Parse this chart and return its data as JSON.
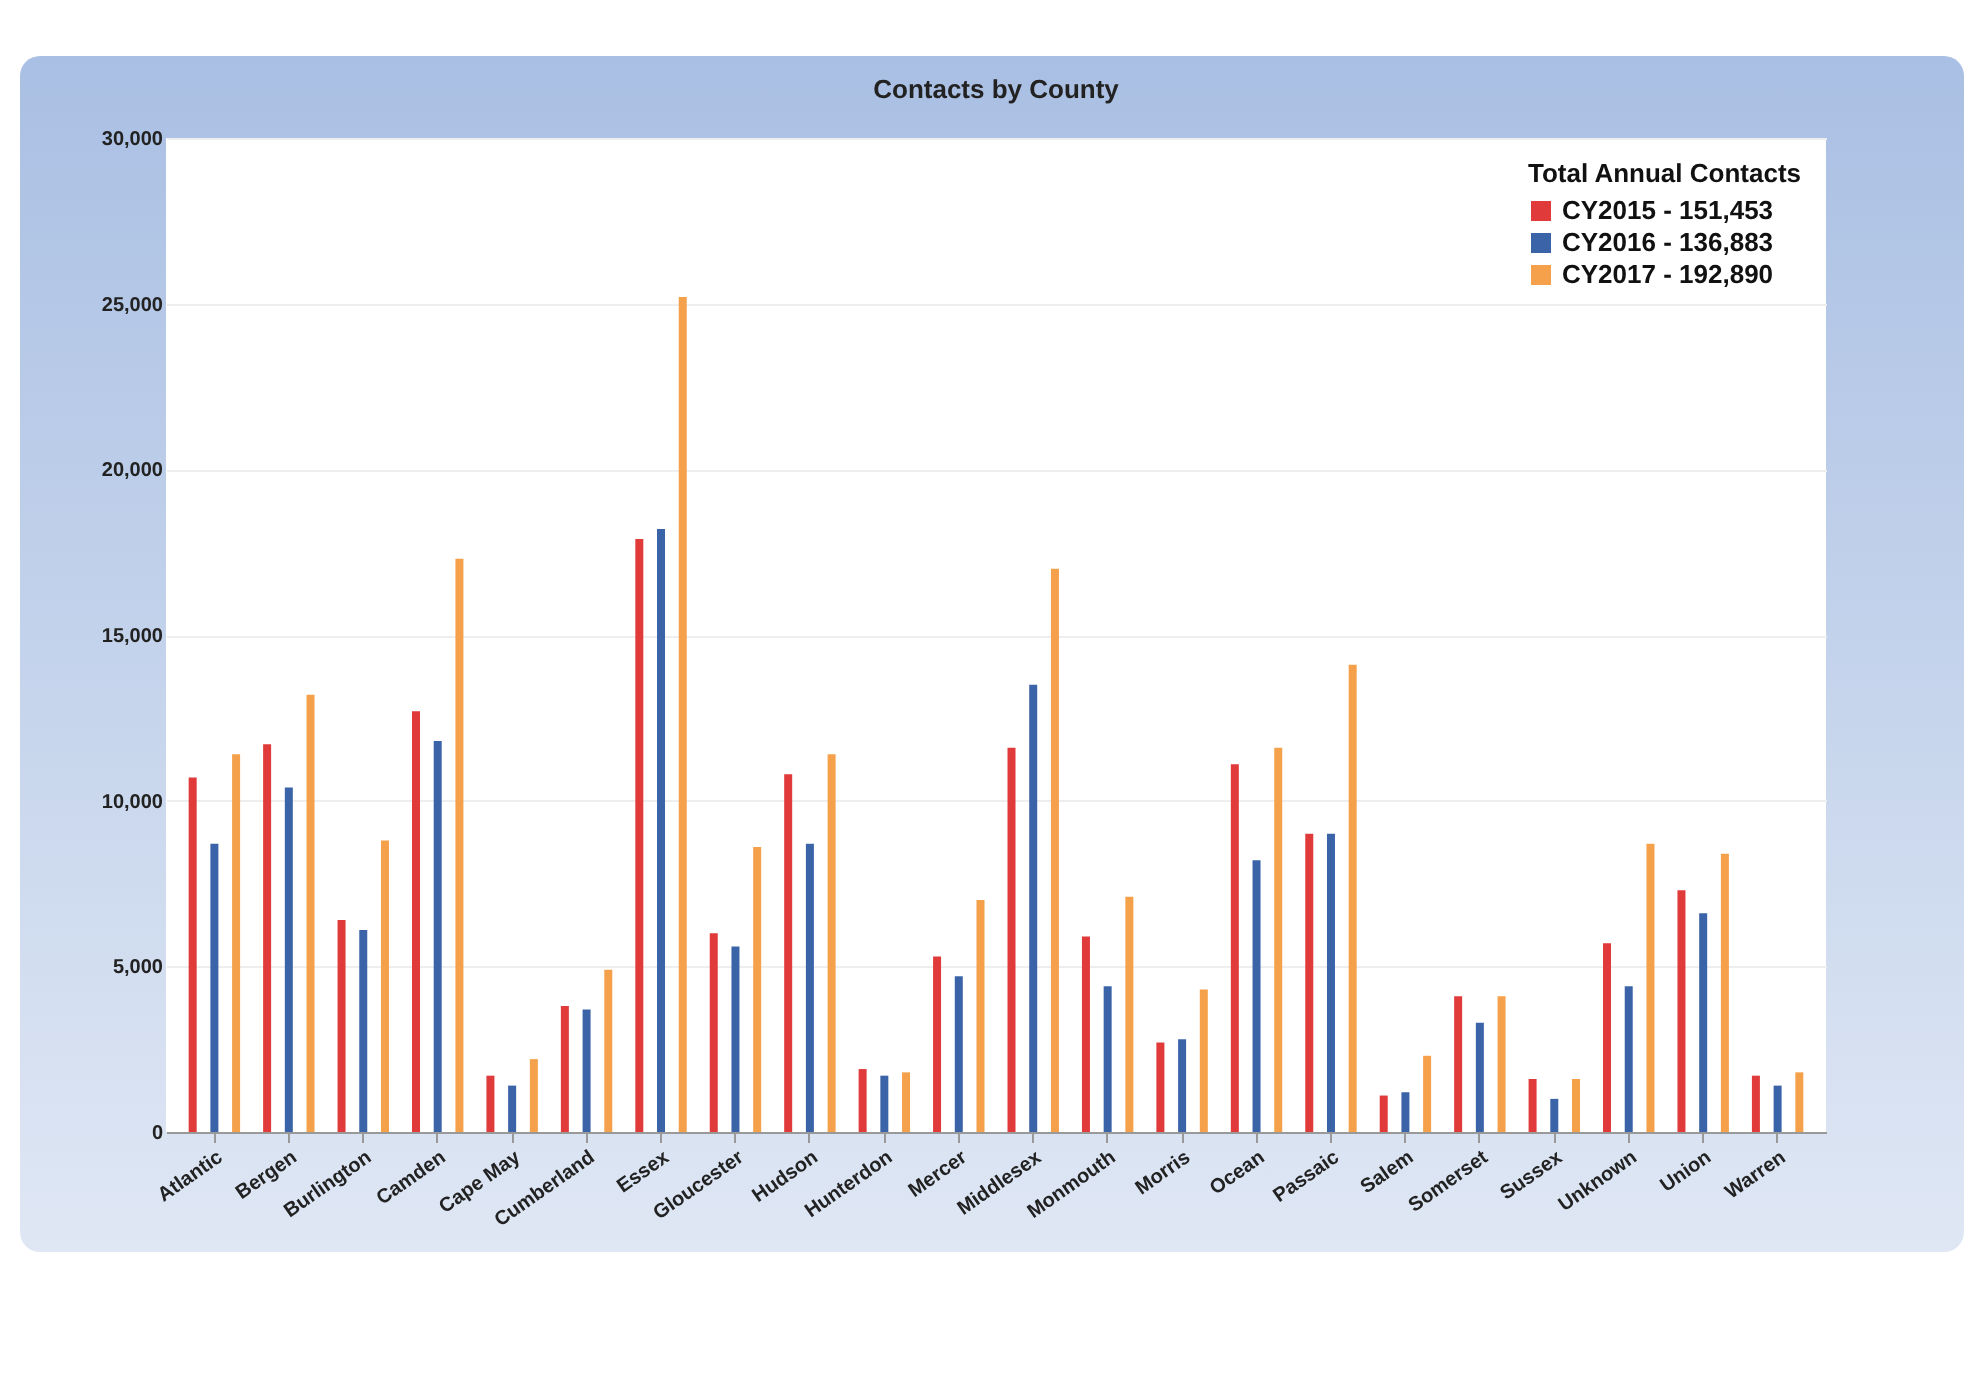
{
  "chart_data": {
    "type": "bar",
    "title": "Contacts by County",
    "legend_title": "Total Annual Contacts",
    "categories": [
      "Atlantic",
      "Bergen",
      "Burlington",
      "Camden",
      "Cape May",
      "Cumberland",
      "Essex",
      "Gloucester",
      "Hudson",
      "Hunterdon",
      "Mercer",
      "Middlesex",
      "Monmouth",
      "Morris",
      "Ocean",
      "Passaic",
      "Salem",
      "Somerset",
      "Sussex",
      "Unknown",
      "Union",
      "Warren"
    ],
    "series": [
      {
        "name": "CY2015 - 151,453",
        "color": "#e03a3a",
        "values": [
          10700,
          11700,
          6400,
          12700,
          1700,
          3800,
          17900,
          6000,
          10800,
          1900,
          5300,
          11600,
          5900,
          2700,
          11100,
          9000,
          1100,
          4100,
          1600,
          5700,
          7300,
          1700
        ]
      },
      {
        "name": "CY2016 - 136,883",
        "color": "#3b64a8",
        "values": [
          8700,
          10400,
          6100,
          11800,
          1400,
          3700,
          18200,
          5600,
          8700,
          1700,
          4700,
          13500,
          4400,
          2800,
          8200,
          9000,
          1200,
          3300,
          1000,
          4400,
          6600,
          1400
        ]
      },
      {
        "name": "CY2017 - 192,890",
        "color": "#f5a04a",
        "values": [
          11400,
          13200,
          8800,
          17300,
          2200,
          4900,
          25200,
          8600,
          11400,
          1800,
          7000,
          17000,
          7100,
          4300,
          11600,
          14100,
          2300,
          4100,
          1600,
          8700,
          8400,
          1800
        ]
      }
    ],
    "ylim": [
      0,
      30000
    ],
    "yticks": [
      0,
      {
        "value": 5000,
        "label": "5,000"
      },
      {
        "value": 10000,
        "label": "10,000"
      },
      {
        "value": 15000,
        "label": "15,000"
      },
      {
        "value": 20000,
        "label": "20,000"
      },
      {
        "value": 25000,
        "label": "25,000"
      },
      {
        "value": 30000,
        "label": "30,000"
      }
    ],
    "grid": "y",
    "legend": "top right"
  }
}
